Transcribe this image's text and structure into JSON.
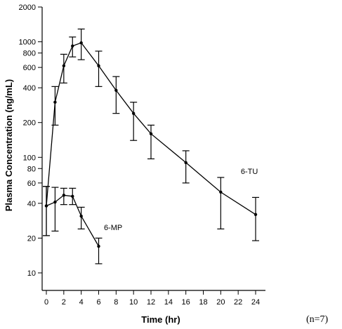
{
  "chart_data": {
    "type": "line",
    "xlabel": "Time (hr)",
    "ylabel": "Plasma Concentration (ng/mL)",
    "xlim": [
      0,
      24
    ],
    "ylim": [
      10,
      2000
    ],
    "yscale": "log",
    "x_ticks": [
      0,
      2,
      4,
      6,
      8,
      10,
      12,
      14,
      16,
      18,
      20,
      22,
      24
    ],
    "y_ticks": [
      10,
      20,
      40,
      60,
      80,
      100,
      200,
      400,
      600,
      800,
      1000,
      2000
    ],
    "grid": false,
    "series": [
      {
        "name": "6-TU",
        "points": [
          {
            "x": 0,
            "y": 38,
            "lo": 21,
            "hi": 56
          },
          {
            "x": 1,
            "y": 300,
            "lo": 190,
            "hi": 410
          },
          {
            "x": 2,
            "y": 620,
            "lo": 440,
            "hi": 780
          },
          {
            "x": 3,
            "y": 920,
            "lo": 740,
            "hi": 1100
          },
          {
            "x": 4,
            "y": 980,
            "lo": 700,
            "hi": 1290
          },
          {
            "x": 6,
            "y": 620,
            "lo": 410,
            "hi": 830
          },
          {
            "x": 8,
            "y": 380,
            "lo": 240,
            "hi": 500
          },
          {
            "x": 10,
            "y": 240,
            "lo": 140,
            "hi": 300
          },
          {
            "x": 12,
            "y": 160,
            "lo": 97,
            "hi": 190
          },
          {
            "x": 16,
            "y": 90,
            "lo": 60,
            "hi": 114
          },
          {
            "x": 20,
            "y": 50,
            "lo": 24,
            "hi": 67
          },
          {
            "x": 24,
            "y": 32,
            "lo": 19,
            "hi": 45
          }
        ]
      },
      {
        "name": "6-MP",
        "points": [
          {
            "x": 0,
            "y": 38,
            "lo": 21,
            "hi": 56
          },
          {
            "x": 1,
            "y": 41,
            "lo": 23,
            "hi": 55
          },
          {
            "x": 2,
            "y": 47,
            "lo": 39,
            "hi": 54
          },
          {
            "x": 3,
            "y": 46,
            "lo": 39,
            "hi": 54
          },
          {
            "x": 4,
            "y": 31,
            "lo": 24,
            "hi": 37
          },
          {
            "x": 6,
            "y": 17,
            "lo": 12,
            "hi": 20
          }
        ]
      }
    ],
    "annotations": [
      "6-TU",
      "6-MP",
      "(n=7)"
    ]
  }
}
